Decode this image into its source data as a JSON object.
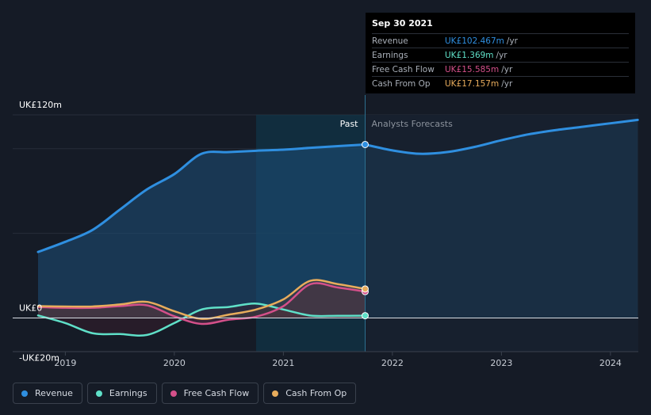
{
  "tooltip": {
    "date": "Sep 30 2021",
    "rows": [
      {
        "label": "Revenue",
        "value": "UK£102.467m",
        "unit": "/yr",
        "color": "#2f8fe0"
      },
      {
        "label": "Earnings",
        "value": "UK£1.369m",
        "unit": "/yr",
        "color": "#5fe0c8"
      },
      {
        "label": "Free Cash Flow",
        "value": "UK£15.585m",
        "unit": "/yr",
        "color": "#d4508a"
      },
      {
        "label": "Cash From Op",
        "value": "UK£17.157m",
        "unit": "/yr",
        "color": "#e8ac5c"
      }
    ]
  },
  "legend": [
    {
      "label": "Revenue",
      "color": "#2f8fe0"
    },
    {
      "label": "Earnings",
      "color": "#5fe0c8"
    },
    {
      "label": "Free Cash Flow",
      "color": "#d4508a"
    },
    {
      "label": "Cash From Op",
      "color": "#e8ac5c"
    }
  ],
  "chart_data": {
    "type": "line",
    "title": "",
    "ylabel": "",
    "xlabel": "",
    "ylim": [
      -20,
      120
    ],
    "xlim": [
      2018.75,
      2024.25
    ],
    "ytick_labels": {
      "top": "UK£120m",
      "zero": "UK£0",
      "bottom": "-UK£20m"
    },
    "xticks": [
      "2019",
      "2020",
      "2021",
      "2022",
      "2023",
      "2024"
    ],
    "past_label": "Past",
    "forecast_label": "Analysts Forecasts",
    "divider_x": 2021.75,
    "highlight_start": 2020.75,
    "series": [
      {
        "name": "Revenue",
        "color": "#2f8fe0",
        "points": [
          [
            2018.75,
            39
          ],
          [
            2019.0,
            45
          ],
          [
            2019.25,
            52
          ],
          [
            2019.5,
            64
          ],
          [
            2019.75,
            76
          ],
          [
            2020.0,
            85
          ],
          [
            2020.25,
            97
          ],
          [
            2020.5,
            98
          ],
          [
            2020.75,
            98.8
          ],
          [
            2021.0,
            99.4
          ],
          [
            2021.25,
            100.5
          ],
          [
            2021.5,
            101.5
          ],
          [
            2021.75,
            102.467
          ]
        ],
        "forecast": [
          [
            2021.75,
            102.467
          ],
          [
            2022.0,
            99
          ],
          [
            2022.25,
            97
          ],
          [
            2022.5,
            98
          ],
          [
            2022.75,
            101
          ],
          [
            2023.0,
            105
          ],
          [
            2023.25,
            108.5
          ],
          [
            2023.5,
            111
          ],
          [
            2023.75,
            113
          ],
          [
            2024.0,
            115
          ],
          [
            2024.25,
            117
          ]
        ]
      },
      {
        "name": "Earnings",
        "color": "#5fe0c8",
        "points": [
          [
            2018.75,
            1.5
          ],
          [
            2019.0,
            -3
          ],
          [
            2019.25,
            -9
          ],
          [
            2019.5,
            -9.5
          ],
          [
            2019.75,
            -10
          ],
          [
            2020.0,
            -3
          ],
          [
            2020.25,
            5
          ],
          [
            2020.5,
            6.5
          ],
          [
            2020.75,
            8.5
          ],
          [
            2021.0,
            5
          ],
          [
            2021.25,
            1.4
          ],
          [
            2021.5,
            1.3
          ],
          [
            2021.75,
            1.369
          ]
        ]
      },
      {
        "name": "Free Cash Flow",
        "color": "#d4508a",
        "points": [
          [
            2018.75,
            6.5
          ],
          [
            2019.0,
            6
          ],
          [
            2019.25,
            6
          ],
          [
            2019.5,
            7
          ],
          [
            2019.75,
            7.5
          ],
          [
            2020.0,
            1
          ],
          [
            2020.25,
            -3.5
          ],
          [
            2020.5,
            -1
          ],
          [
            2020.75,
            0.8
          ],
          [
            2021.0,
            7
          ],
          [
            2021.25,
            20
          ],
          [
            2021.5,
            18
          ],
          [
            2021.75,
            15.585
          ]
        ]
      },
      {
        "name": "Cash From Op",
        "color": "#e8ac5c",
        "points": [
          [
            2018.75,
            7
          ],
          [
            2019.0,
            6.8
          ],
          [
            2019.25,
            6.8
          ],
          [
            2019.5,
            8
          ],
          [
            2019.75,
            9.5
          ],
          [
            2020.0,
            4
          ],
          [
            2020.25,
            -0.5
          ],
          [
            2020.5,
            2
          ],
          [
            2020.75,
            5
          ],
          [
            2021.0,
            11
          ],
          [
            2021.25,
            22
          ],
          [
            2021.5,
            20
          ],
          [
            2021.75,
            17.157
          ]
        ]
      }
    ]
  }
}
